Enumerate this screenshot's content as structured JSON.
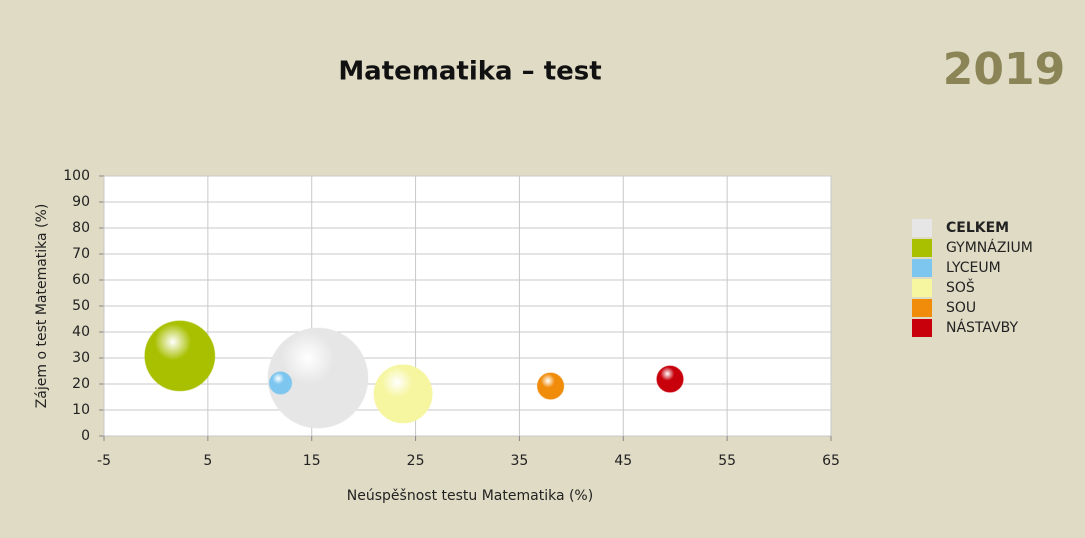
{
  "chart_data": {
    "type": "bubble",
    "title": "Matematika – test",
    "year": "2019",
    "x_label": "Neúspěšnost testu Matematika (%)",
    "y_label": "Zájem o test Matematika (%)",
    "xlim": [
      -5,
      65
    ],
    "xticks": [
      -5,
      5,
      15,
      25,
      35,
      45,
      55,
      65
    ],
    "ylim": [
      0,
      100
    ],
    "yticks": [
      0,
      10,
      20,
      30,
      40,
      50,
      60,
      70,
      80,
      90,
      100
    ],
    "grid": true,
    "legend": "right",
    "series": [
      {
        "name": "CELKEM",
        "color": "#e6e6e6",
        "x": [
          15.6
        ],
        "values": [
          22.3
        ],
        "sizes": [
          100
        ]
      },
      {
        "name": "GYMNÁZIUM",
        "color": "#a8c000",
        "x": [
          2.3
        ],
        "values": [
          30.8
        ],
        "sizes": [
          49
        ]
      },
      {
        "name": "LYCEUM",
        "color": "#7cc6f0",
        "x": [
          12.0
        ],
        "values": [
          20.4
        ],
        "sizes": [
          5
        ]
      },
      {
        "name": "SOŠ",
        "color": "#f6f6a0",
        "x": [
          23.8
        ],
        "values": [
          16.2
        ],
        "sizes": [
          34
        ]
      },
      {
        "name": "SOU",
        "color": "#f08c0a",
        "x": [
          38.0
        ],
        "values": [
          19.2
        ],
        "sizes": [
          7
        ]
      },
      {
        "name": "NÁSTAVBY",
        "color": "#c8000c",
        "x": [
          49.5
        ],
        "values": [
          21.9
        ],
        "sizes": [
          7
        ]
      }
    ]
  }
}
